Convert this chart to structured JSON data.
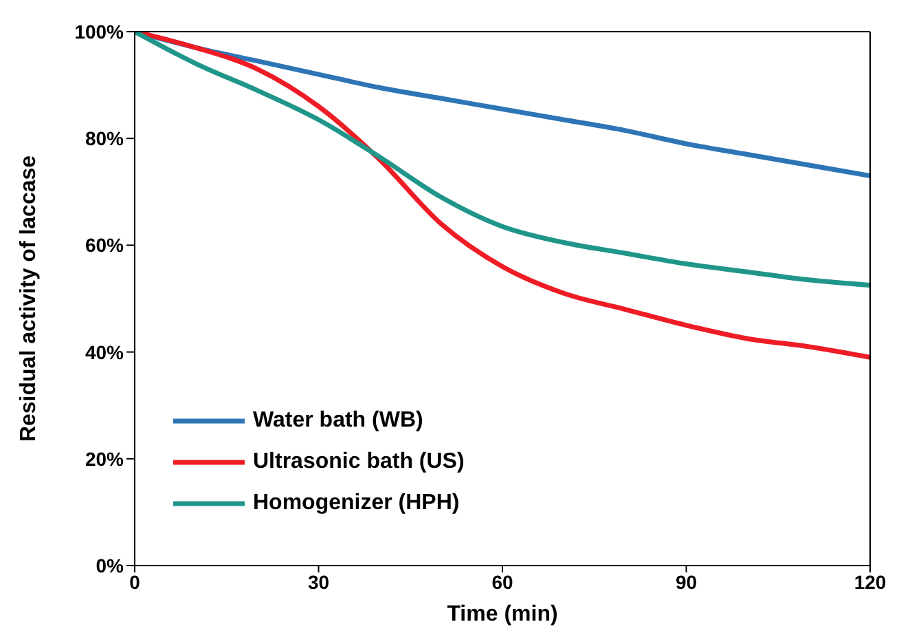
{
  "chart_data": {
    "type": "line",
    "xlabel": "Time (min)",
    "ylabel": "Residual activity of laccase",
    "x": [
      0,
      10,
      20,
      30,
      40,
      50,
      60,
      70,
      80,
      90,
      100,
      110,
      120
    ],
    "series": [
      {
        "name": "Water bath (WB)",
        "color": "#2e75b6",
        "values": [
          100,
          97,
          94.5,
          92,
          89.5,
          87.5,
          85.5,
          83.5,
          81.5,
          79,
          77,
          75,
          73
        ]
      },
      {
        "name": "Ultrasonic bath (US)",
        "color": "#ee1c25",
        "values": [
          100,
          97,
          93,
          86,
          76,
          64,
          56,
          51,
          48,
          45,
          42.5,
          41,
          39
        ]
      },
      {
        "name": "Homogenizer (HPH)",
        "color": "#20968a",
        "values": [
          100,
          94,
          89,
          83.5,
          76.5,
          69,
          63.5,
          60.5,
          58.5,
          56.5,
          55,
          53.5,
          52.5
        ]
      }
    ],
    "xlim": [
      0,
      120
    ],
    "xticks": [
      0,
      30,
      60,
      90,
      120
    ],
    "ylim": [
      0,
      100
    ],
    "yticks": [
      {
        "value": 0,
        "label": "0%"
      },
      {
        "value": 20,
        "label": "20%"
      },
      {
        "value": 40,
        "label": "40%"
      },
      {
        "value": 60,
        "label": "60%"
      },
      {
        "value": 80,
        "label": "80%"
      },
      {
        "value": 100,
        "label": "100%"
      }
    ],
    "legend": "bottom left",
    "marker": "none",
    "line_style": "solid",
    "grid": false
  }
}
